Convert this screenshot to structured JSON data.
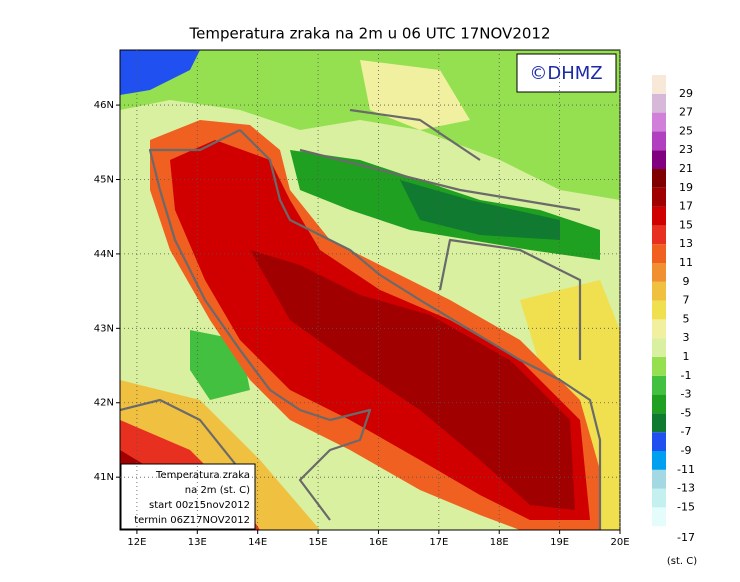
{
  "chart_data": {
    "type": "map",
    "title": "Temperatura zraka na 2m u 06 UTC 17NOV2012",
    "logo": "©DHMZ",
    "xlim": [
      11.72,
      20
    ],
    "ylim": [
      40.29,
      46.74
    ],
    "xticks": [
      {
        "value": 12,
        "label": "12E"
      },
      {
        "value": 13,
        "label": "13E"
      },
      {
        "value": 14,
        "label": "14E"
      },
      {
        "value": 15,
        "label": "15E"
      },
      {
        "value": 16,
        "label": "16E"
      },
      {
        "value": 17,
        "label": "17E"
      },
      {
        "value": 18,
        "label": "18E"
      },
      {
        "value": 19,
        "label": "19E"
      },
      {
        "value": 20,
        "label": "20E"
      }
    ],
    "yticks": [
      {
        "value": 41,
        "label": "41N"
      },
      {
        "value": 42,
        "label": "42N"
      },
      {
        "value": 43,
        "label": "43N"
      },
      {
        "value": 44,
        "label": "44N"
      },
      {
        "value": 45,
        "label": "45N"
      },
      {
        "value": 46,
        "label": "46N"
      }
    ],
    "grid": true,
    "info_box": [
      "Temperatura zraka",
      "na 2m (st. C)",
      "start 00z15nov2012",
      "termin 06Z17NOV2012"
    ],
    "colorbar": {
      "unit": "(st. C)",
      "levels": [
        -17,
        -15,
        -13,
        -11,
        -9,
        -7,
        -5,
        -3,
        -1,
        1,
        3,
        5,
        7,
        9,
        11,
        13,
        15,
        17,
        19,
        21,
        23,
        25,
        27,
        29
      ],
      "colors": [
        "#e4fcfc",
        "#c4f0f0",
        "#a4d8e2",
        "#00a0f0",
        "#2050f0",
        "#107a30",
        "#20a020",
        "#44c040",
        "#94e050",
        "#d8f0a0",
        "#f0f0a0",
        "#f0e050",
        "#f0c040",
        "#f09030",
        "#f06020",
        "#e83020",
        "#d00000",
        "#a00000",
        "#800000",
        "#800080",
        "#b040c0",
        "#d080d8",
        "#d8b8d8",
        "#f8e8d8"
      ]
    }
  }
}
